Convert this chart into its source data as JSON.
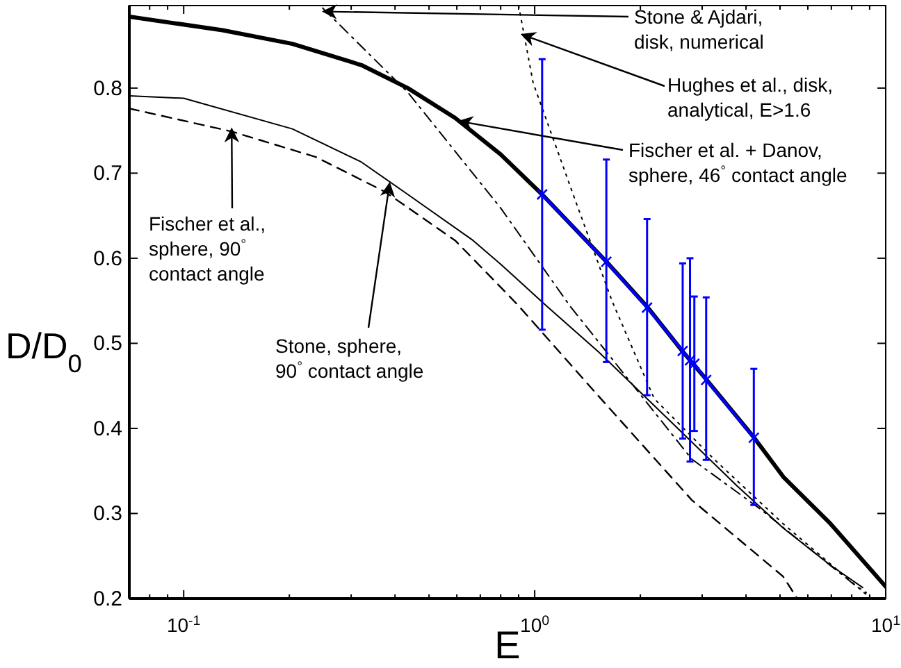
{
  "chart_data": {
    "type": "line",
    "xlabel": "E",
    "ylabel": "D/D$_{0}$",
    "log": "x",
    "grid": false,
    "xlim": [
      0.07,
      10
    ],
    "ylim": [
      0.2,
      0.897
    ],
    "xticks": [
      {
        "value": 0.08,
        "label": null
      },
      {
        "value": 0.09,
        "label": null
      },
      {
        "value": 0.1,
        "label": "10$^{-1}$"
      },
      {
        "value": 0.2,
        "label": null
      },
      {
        "value": 0.3,
        "label": null
      },
      {
        "value": 0.4,
        "label": null
      },
      {
        "value": 0.5,
        "label": null
      },
      {
        "value": 0.6,
        "label": null
      },
      {
        "value": 0.7,
        "label": null
      },
      {
        "value": 0.8,
        "label": null
      },
      {
        "value": 0.9,
        "label": null
      },
      {
        "value": 1,
        "label": "10$^{0}$"
      },
      {
        "value": 2,
        "label": null
      },
      {
        "value": 3,
        "label": null
      },
      {
        "value": 4,
        "label": null
      },
      {
        "value": 5,
        "label": null
      },
      {
        "value": 6,
        "label": null
      },
      {
        "value": 7,
        "label": null
      },
      {
        "value": 8,
        "label": null
      },
      {
        "value": 9,
        "label": null
      },
      {
        "value": 10,
        "label": "10$^{1}$"
      }
    ],
    "yticks": [
      0.2,
      0.3,
      0.4,
      0.5,
      0.6,
      0.7,
      0.8
    ],
    "series": [
      {
        "color": "#000000",
        "line_style": "solid",
        "marker": "none",
        "x": [
          0.07,
          0.129,
          0.204,
          0.321,
          0.435,
          0.593,
          0.8,
          1.05,
          1.6,
          2.09,
          2.62,
          3.09,
          4.22,
          5.11,
          6.96,
          10
        ],
        "values": [
          0.884,
          0.868,
          0.852,
          0.827,
          0.8,
          0.765,
          0.722,
          0.675,
          0.596,
          0.543,
          0.492,
          0.457,
          0.389,
          0.343,
          0.288,
          0.214
        ]
      },
      {
        "color": "#000000",
        "line_style": "solid",
        "marker": "none",
        "x": [
          0.07,
          0.1,
          0.204,
          0.321,
          0.435,
          0.667,
          0.8,
          1.08,
          1.52,
          2.4,
          3.78,
          5.1,
          6.97,
          8.6
        ],
        "values": [
          0.791,
          0.788,
          0.752,
          0.713,
          0.675,
          0.621,
          0.593,
          0.544,
          0.49,
          0.411,
          0.332,
          0.283,
          0.239,
          0.213
        ]
      },
      {
        "color": "#000000",
        "line_style": "dashed",
        "marker": "none",
        "x": [
          0.07,
          0.137,
          0.238,
          0.375,
          0.593,
          0.8,
          0.9,
          1.52,
          2.8,
          5.1,
          5.6
        ],
        "values": [
          0.776,
          0.749,
          0.719,
          0.678,
          0.621,
          0.566,
          0.544,
          0.438,
          0.316,
          0.226,
          0.2
        ]
      },
      {
        "color": "#000000",
        "line_style": "dashdot",
        "marker": "none",
        "x": [
          0.249,
          0.435,
          0.8,
          1.26,
          2.8,
          4.4,
          8.1,
          8.8
        ],
        "values": [
          0.894,
          0.795,
          0.659,
          0.544,
          0.364,
          0.305,
          0.217,
          0.207
        ]
      },
      {
        "color": "#000000",
        "line_style": "dotted",
        "marker": "none",
        "x": [
          0.9,
          0.99,
          1.3,
          1.66,
          2.19,
          3.24,
          5.1,
          8.85
        ],
        "values": [
          0.897,
          0.806,
          0.67,
          0.55,
          0.435,
          0.364,
          0.288,
          0.204
        ]
      },
      {
        "color": "#0000ff",
        "line_style": "solid",
        "marker": "cross",
        "x": [
          1.05,
          1.6,
          2.09,
          2.64,
          2.77,
          2.85,
          3.08,
          4.21
        ],
        "values": [
          0.675,
          0.596,
          0.542,
          0.491,
          0.48,
          0.476,
          0.457,
          0.389
        ],
        "errors": [
          [
            0.516,
            0.834
          ],
          [
            0.478,
            0.716
          ],
          [
            0.439,
            0.646
          ],
          [
            0.388,
            0.594
          ],
          [
            0.361,
            0.6
          ],
          [
            0.397,
            0.555
          ],
          [
            0.363,
            0.554
          ],
          [
            0.31,
            0.47
          ]
        ]
      }
    ],
    "annotations": [
      {
        "text": "Stone & Ajdari,\ndisk, numerical",
        "x": 0.25,
        "y": 0.89
      },
      {
        "text": "Hughes et al., disk,\nanalytical, E>1.6",
        "x": 0.92,
        "y": 0.863
      },
      {
        "text": "Fischer et al. + Danov,\nsphere, 46$^{°}$ contact angle",
        "x": 0.61,
        "y": 0.761
      },
      {
        "text": "Fischer et al.,\nsphere, 90$^{°}$\ncontact angle",
        "x": 0.137,
        "y": 0.752
      },
      {
        "text": "Stone, sphere,\n90$^{°}$ contact angle",
        "x": 0.386,
        "y": 0.688
      }
    ]
  }
}
